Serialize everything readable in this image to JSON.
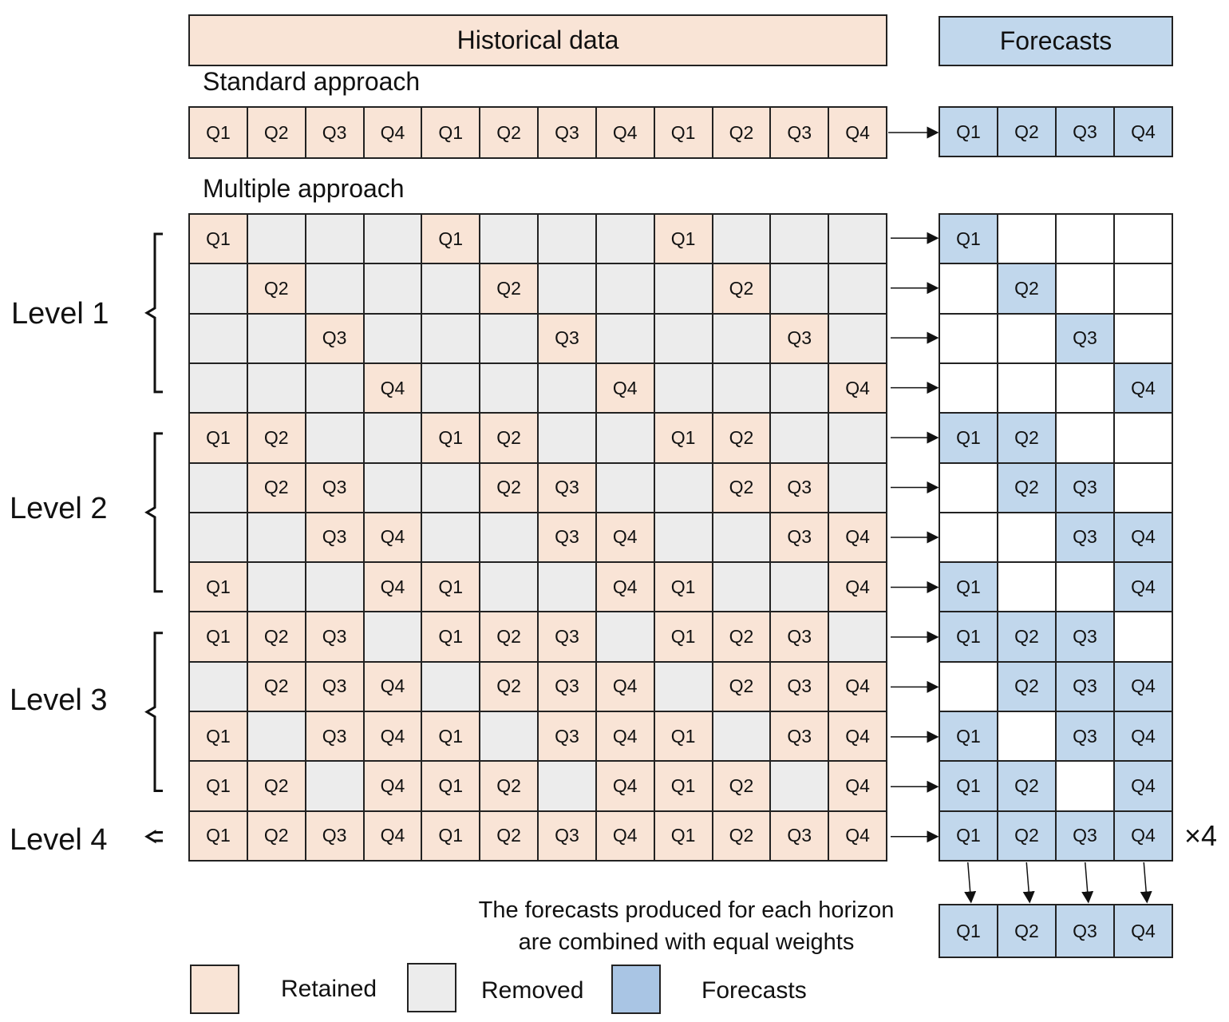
{
  "headers": {
    "historical": "Historical data",
    "forecasts": "Forecasts"
  },
  "sections": {
    "standard": "Standard approach",
    "multiple": "Multiple approach"
  },
  "quarters": [
    "Q1",
    "Q2",
    "Q3",
    "Q4"
  ],
  "standard": {
    "history": [
      "Q1",
      "Q2",
      "Q3",
      "Q4",
      "Q1",
      "Q2",
      "Q3",
      "Q4",
      "Q1",
      "Q2",
      "Q3",
      "Q4"
    ],
    "forecasts": [
      "Q1",
      "Q2",
      "Q3",
      "Q4"
    ]
  },
  "multiple_rows": [
    {
      "kept": [
        1,
        0,
        0,
        0
      ],
      "fc": [
        1,
        0,
        0,
        0
      ]
    },
    {
      "kept": [
        0,
        1,
        0,
        0
      ],
      "fc": [
        0,
        1,
        0,
        0
      ]
    },
    {
      "kept": [
        0,
        0,
        1,
        0
      ],
      "fc": [
        0,
        0,
        1,
        0
      ]
    },
    {
      "kept": [
        0,
        0,
        0,
        1
      ],
      "fc": [
        0,
        0,
        0,
        1
      ]
    },
    {
      "kept": [
        1,
        1,
        0,
        0
      ],
      "fc": [
        1,
        1,
        0,
        0
      ]
    },
    {
      "kept": [
        0,
        1,
        1,
        0
      ],
      "fc": [
        0,
        1,
        1,
        0
      ]
    },
    {
      "kept": [
        0,
        0,
        1,
        1
      ],
      "fc": [
        0,
        0,
        1,
        1
      ]
    },
    {
      "kept": [
        1,
        0,
        0,
        1
      ],
      "fc": [
        1,
        0,
        0,
        1
      ]
    },
    {
      "kept": [
        1,
        1,
        1,
        0
      ],
      "fc": [
        1,
        1,
        1,
        0
      ]
    },
    {
      "kept": [
        0,
        1,
        1,
        1
      ],
      "fc": [
        0,
        1,
        1,
        1
      ]
    },
    {
      "kept": [
        1,
        0,
        1,
        1
      ],
      "fc": [
        1,
        0,
        1,
        1
      ]
    },
    {
      "kept": [
        1,
        1,
        0,
        1
      ],
      "fc": [
        1,
        1,
        0,
        1
      ]
    },
    {
      "kept": [
        1,
        1,
        1,
        1
      ],
      "fc": [
        1,
        1,
        1,
        1
      ]
    }
  ],
  "levels": [
    {
      "label": "Level 1",
      "rows": [
        0,
        3
      ]
    },
    {
      "label": "Level 2",
      "rows": [
        4,
        7
      ]
    },
    {
      "label": "Level 3",
      "rows": [
        8,
        11
      ]
    },
    {
      "label": "Level 4",
      "rows": [
        12,
        12
      ]
    }
  ],
  "multiplier": "×4",
  "combined_note": [
    "The forecasts produced for each horizon",
    "are combined with equal weights"
  ],
  "combined": [
    "Q1",
    "Q2",
    "Q3",
    "Q4"
  ],
  "legend": [
    {
      "label": "Retained",
      "color": "#f9e4d6"
    },
    {
      "label": "Removed",
      "color": "#ececec"
    },
    {
      "label": "Forecasts",
      "color": "#c1d7ec"
    }
  ]
}
